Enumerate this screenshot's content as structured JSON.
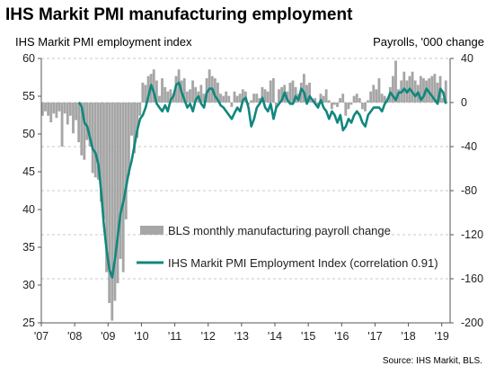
{
  "chart_data": {
    "type": "bar+line",
    "title": "IHS Markit PMI manufacturing employment",
    "left_axis": {
      "label": "IHS Markit  PMI employment index",
      "range": [
        25,
        60
      ],
      "ticks": [
        25,
        30,
        35,
        40,
        45,
        50,
        55,
        60
      ]
    },
    "right_axis": {
      "label": "Payrolls, '000 change",
      "range": [
        -200,
        40
      ],
      "ticks": [
        -200,
        -160,
        -120,
        -80,
        -40,
        0,
        40
      ]
    },
    "x_axis": {
      "range": [
        2007.0,
        2019.25
      ],
      "tick_labels": [
        "'07",
        "'08",
        "'09",
        "'10",
        "'11",
        "'12",
        "'13",
        "'14",
        "'15",
        "'16",
        "'17",
        "'18",
        "'19"
      ]
    },
    "grid": "horizontal dashed",
    "legend_placement": "lower-middle",
    "legend": [
      "BLS monthly manufacturing payroll change",
      "IHS Markit PMI Employment Index (correlation 0.91)"
    ],
    "source": "Source: IHS Markit, BLS.",
    "colors": {
      "bars": "#a6a6a6",
      "line": "#11877e",
      "grid": "#b8b8b8"
    },
    "series": [
      {
        "name": "BLS monthly manufacturing payroll change",
        "axis": "right",
        "kind": "bar",
        "x": [
          2007.0,
          2007.083,
          2007.167,
          2007.25,
          2007.333,
          2007.417,
          2007.5,
          2007.583,
          2007.667,
          2007.75,
          2007.833,
          2007.917,
          2008.0,
          2008.083,
          2008.167,
          2008.25,
          2008.333,
          2008.417,
          2008.5,
          2008.583,
          2008.667,
          2008.75,
          2008.833,
          2008.917,
          2009.0,
          2009.083,
          2009.167,
          2009.25,
          2009.333,
          2009.417,
          2009.5,
          2009.583,
          2009.667,
          2009.75,
          2009.833,
          2009.917,
          2010.0,
          2010.083,
          2010.167,
          2010.25,
          2010.333,
          2010.417,
          2010.5,
          2010.583,
          2010.667,
          2010.75,
          2010.833,
          2010.917,
          2011.0,
          2011.083,
          2011.167,
          2011.25,
          2011.333,
          2011.417,
          2011.5,
          2011.583,
          2011.667,
          2011.75,
          2011.833,
          2011.917,
          2012.0,
          2012.083,
          2012.167,
          2012.25,
          2012.333,
          2012.417,
          2012.5,
          2012.583,
          2012.667,
          2012.75,
          2012.833,
          2012.917,
          2013.0,
          2013.083,
          2013.167,
          2013.25,
          2013.333,
          2013.417,
          2013.5,
          2013.583,
          2013.667,
          2013.75,
          2013.833,
          2013.917,
          2014.0,
          2014.083,
          2014.167,
          2014.25,
          2014.333,
          2014.417,
          2014.5,
          2014.583,
          2014.667,
          2014.75,
          2014.833,
          2014.917,
          2015.0,
          2015.083,
          2015.167,
          2015.25,
          2015.333,
          2015.417,
          2015.5,
          2015.583,
          2015.667,
          2015.75,
          2015.833,
          2015.917,
          2016.0,
          2016.083,
          2016.167,
          2016.25,
          2016.333,
          2016.417,
          2016.5,
          2016.583,
          2016.667,
          2016.75,
          2016.833,
          2016.917,
          2017.0,
          2017.083,
          2017.167,
          2017.25,
          2017.333,
          2017.417,
          2017.5,
          2017.583,
          2017.667,
          2017.75,
          2017.833,
          2017.917,
          2018.0,
          2018.083,
          2018.167,
          2018.25,
          2018.333,
          2018.417,
          2018.5,
          2018.583,
          2018.667,
          2018.75,
          2018.833,
          2018.917,
          2019.0,
          2019.083
        ],
        "values": [
          -12,
          -8,
          -12,
          -18,
          -10,
          -14,
          -8,
          -40,
          -10,
          -20,
          -12,
          -28,
          -16,
          -36,
          -48,
          -52,
          -34,
          -40,
          -64,
          -68,
          -70,
          -90,
          -106,
          -154,
          -182,
          -198,
          -180,
          -164,
          -142,
          -154,
          -106,
          -66,
          -30,
          -46,
          -32,
          -12,
          18,
          16,
          24,
          26,
          30,
          20,
          6,
          22,
          14,
          10,
          12,
          8,
          24,
          30,
          20,
          22,
          10,
          12,
          20,
          14,
          10,
          16,
          8,
          22,
          30,
          24,
          22,
          18,
          8,
          6,
          10,
          6,
          -4,
          10,
          6,
          8,
          12,
          10,
          -2,
          2,
          8,
          8,
          4,
          14,
          12,
          10,
          20,
          22,
          -4,
          12,
          14,
          16,
          10,
          18,
          20,
          14,
          8,
          18,
          26,
          16,
          18,
          2,
          4,
          -4,
          8,
          6,
          12,
          2,
          -6,
          -2,
          -4,
          4,
          8,
          -12,
          -6,
          -2,
          6,
          8,
          4,
          -6,
          -8,
          2,
          10,
          16,
          12,
          22,
          8,
          6,
          4,
          14,
          24,
          38,
          12,
          20,
          28,
          20,
          24,
          28,
          20,
          16,
          24,
          22,
          20,
          22,
          24,
          26,
          18,
          24,
          4,
          20
        ]
      },
      {
        "name": "IHS Markit PMI Employment Index (correlation 0.91)",
        "axis": "left",
        "kind": "line",
        "x": [
          2008.083,
          2008.167,
          2008.25,
          2008.333,
          2008.417,
          2008.5,
          2008.583,
          2008.667,
          2008.75,
          2008.833,
          2008.917,
          2009.0,
          2009.083,
          2009.167,
          2009.25,
          2009.333,
          2009.417,
          2009.5,
          2009.583,
          2009.667,
          2009.75,
          2009.833,
          2009.917,
          2010.0,
          2010.083,
          2010.167,
          2010.25,
          2010.333,
          2010.417,
          2010.5,
          2010.583,
          2010.667,
          2010.75,
          2010.833,
          2010.917,
          2011.0,
          2011.083,
          2011.167,
          2011.25,
          2011.333,
          2011.417,
          2011.5,
          2011.583,
          2011.667,
          2011.75,
          2011.833,
          2011.917,
          2012.0,
          2012.083,
          2012.167,
          2012.25,
          2012.333,
          2012.417,
          2012.5,
          2012.583,
          2012.667,
          2012.75,
          2012.833,
          2012.917,
          2013.0,
          2013.083,
          2013.167,
          2013.25,
          2013.333,
          2013.417,
          2013.5,
          2013.583,
          2013.667,
          2013.75,
          2013.833,
          2013.917,
          2014.0,
          2014.083,
          2014.167,
          2014.25,
          2014.333,
          2014.417,
          2014.5,
          2014.583,
          2014.667,
          2014.75,
          2014.833,
          2014.917,
          2015.0,
          2015.083,
          2015.167,
          2015.25,
          2015.333,
          2015.417,
          2015.5,
          2015.583,
          2015.667,
          2015.75,
          2015.833,
          2015.917,
          2016.0,
          2016.083,
          2016.167,
          2016.25,
          2016.333,
          2016.417,
          2016.5,
          2016.583,
          2016.667,
          2016.75,
          2016.833,
          2016.917,
          2017.0,
          2017.083,
          2017.167,
          2017.25,
          2017.333,
          2017.417,
          2017.5,
          2017.583,
          2017.667,
          2017.75,
          2017.833,
          2017.917,
          2018.0,
          2018.083,
          2018.167,
          2018.25,
          2018.333,
          2018.417,
          2018.5,
          2018.583,
          2018.667,
          2018.75,
          2018.833,
          2018.917,
          2019.0,
          2019.083
        ],
        "values": [
          54.2,
          53.6,
          51.5,
          51.0,
          49.5,
          48.0,
          47.5,
          46.0,
          42.5,
          38.0,
          34.5,
          32.0,
          31.0,
          33.5,
          36.5,
          39.5,
          41.0,
          43.0,
          45.0,
          46.5,
          48.5,
          50.5,
          52.0,
          52.5,
          53.5,
          55.0,
          56.5,
          55.5,
          54.0,
          53.5,
          53.0,
          53.8,
          53.0,
          54.5,
          55.0,
          56.5,
          56.8,
          55.5,
          54.5,
          53.5,
          54.0,
          53.0,
          54.5,
          55.0,
          54.0,
          53.5,
          55.5,
          56.0,
          56.0,
          55.0,
          54.5,
          53.8,
          53.5,
          53.0,
          52.5,
          52.0,
          52.8,
          53.5,
          53.0,
          54.5,
          54.8,
          53.5,
          51.0,
          52.0,
          53.5,
          54.0,
          54.8,
          53.5,
          53.0,
          54.0,
          52.0,
          53.5,
          54.0,
          54.5,
          55.5,
          54.5,
          54.0,
          54.0,
          55.0,
          54.5,
          56.0,
          55.5,
          54.0,
          55.0,
          54.5,
          54.0,
          53.5,
          54.5,
          53.5,
          53.0,
          52.0,
          53.0,
          52.5,
          51.5,
          52.5,
          50.5,
          51.0,
          52.0,
          51.5,
          52.5,
          53.0,
          52.5,
          51.5,
          51.0,
          52.5,
          53.0,
          53.5,
          53.5,
          53.5,
          53.0,
          54.0,
          54.5,
          55.5,
          55.0,
          54.5,
          55.5,
          55.5,
          56.0,
          55.5,
          56.0,
          55.5,
          55.0,
          55.5,
          54.5,
          55.0,
          56.0,
          55.5,
          55.0,
          54.5,
          54.0,
          56.0,
          55.5,
          54.0
        ]
      }
    ]
  }
}
